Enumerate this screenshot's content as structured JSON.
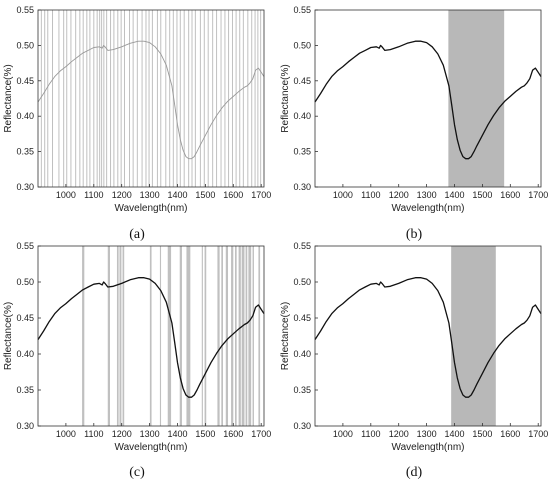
{
  "chart_data": [
    {
      "type": "line",
      "caption": "(a)",
      "xlabel": "Wavelength(nm)",
      "ylabel": "Reflectance(%)",
      "xlim": [
        900,
        1710
      ],
      "ylim": [
        0.3,
        0.55
      ],
      "xticks": [
        "1000",
        "1100",
        "1200",
        "1300",
        "1400",
        "1500",
        "1600",
        "1700"
      ],
      "yticks": [
        "0.30",
        "0.35",
        "0.40",
        "0.45",
        "0.50",
        "0.55"
      ],
      "line_color": "#999999",
      "band_color": "#c0c0c0",
      "selected_wavelengths": [
        912,
        924,
        935,
        952,
        975,
        992,
        1003,
        1018,
        1035,
        1050,
        1062,
        1075,
        1086,
        1100,
        1112,
        1121,
        1128,
        1136,
        1146,
        1160,
        1172,
        1186,
        1198,
        1210,
        1228,
        1241,
        1256,
        1273,
        1287,
        1298,
        1310,
        1328,
        1340,
        1358,
        1372,
        1385,
        1398,
        1410,
        1424,
        1440,
        1452,
        1464,
        1482,
        1496,
        1510,
        1526,
        1540,
        1556,
        1570,
        1583,
        1597,
        1610,
        1623,
        1636,
        1652,
        1666,
        1678,
        1688,
        1698
      ],
      "selected_regions": []
    },
    {
      "type": "line",
      "caption": "(b)",
      "xlabel": "Wavelength(nm)",
      "ylabel": "Reflectance(%)",
      "xlim": [
        900,
        1710
      ],
      "ylim": [
        0.3,
        0.55
      ],
      "xticks": [
        "1000",
        "1100",
        "1200",
        "1300",
        "1400",
        "1500",
        "1600",
        "1700"
      ],
      "yticks": [
        "0.30",
        "0.35",
        "0.40",
        "0.45",
        "0.50",
        "0.55"
      ],
      "line_color": "#111111",
      "band_color": "#b8b8b8",
      "selected_wavelengths": [],
      "selected_regions": [
        [
          1378,
          1578
        ]
      ]
    },
    {
      "type": "line",
      "caption": "(c)",
      "xlabel": "Wavelength(nm)",
      "ylabel": "Reflectance(%)",
      "xlim": [
        900,
        1710
      ],
      "ylim": [
        0.3,
        0.55
      ],
      "xticks": [
        "1000",
        "1100",
        "1200",
        "1300",
        "1400",
        "1500",
        "1600",
        "1700"
      ],
      "yticks": [
        "0.30",
        "0.35",
        "0.40",
        "0.45",
        "0.50",
        "0.55"
      ],
      "line_color": "#111111",
      "band_color": "#c0c0c0",
      "selected_wavelengths": [],
      "selected_regions": [
        [
          1058,
          1066
        ],
        [
          1150,
          1158
        ],
        [
          1183,
          1189
        ],
        [
          1192,
          1199
        ],
        [
          1203,
          1209
        ],
        [
          1301,
          1307
        ],
        [
          1337,
          1341
        ],
        [
          1365,
          1377
        ],
        [
          1408,
          1416
        ],
        [
          1432,
          1446
        ],
        [
          1487,
          1491
        ],
        [
          1497,
          1503
        ],
        [
          1543,
          1551
        ],
        [
          1557,
          1563
        ],
        [
          1573,
          1581
        ],
        [
          1592,
          1600
        ],
        [
          1606,
          1612
        ],
        [
          1619,
          1627
        ],
        [
          1630,
          1640
        ],
        [
          1644,
          1650
        ],
        [
          1654,
          1664
        ],
        [
          1669,
          1674
        ],
        [
          1690,
          1696
        ]
      ]
    },
    {
      "type": "line",
      "caption": "(d)",
      "xlabel": "Wavelength(nm)",
      "ylabel": "Reflectance(%)",
      "xlim": [
        900,
        1710
      ],
      "ylim": [
        0.3,
        0.55
      ],
      "xticks": [
        "1000",
        "1100",
        "1200",
        "1300",
        "1400",
        "1500",
        "1600",
        "1700"
      ],
      "yticks": [
        "0.30",
        "0.35",
        "0.40",
        "0.45",
        "0.50",
        "0.55"
      ],
      "line_color": "#111111",
      "band_color": "#b8b8b8",
      "selected_wavelengths": [],
      "selected_regions": [
        [
          1388,
          1548
        ]
      ]
    }
  ],
  "spectrum": {
    "x": [
      900,
      920,
      940,
      960,
      980,
      1000,
      1020,
      1040,
      1060,
      1080,
      1100,
      1120,
      1130,
      1135,
      1140,
      1150,
      1170,
      1200,
      1230,
      1260,
      1280,
      1300,
      1320,
      1340,
      1360,
      1380,
      1390,
      1400,
      1410,
      1420,
      1430,
      1440,
      1450,
      1460,
      1470,
      1480,
      1500,
      1520,
      1540,
      1560,
      1580,
      1600,
      1620,
      1640,
      1650,
      1660,
      1670,
      1680,
      1690,
      1700,
      1710
    ],
    "y": [
      0.42,
      0.432,
      0.445,
      0.456,
      0.464,
      0.47,
      0.477,
      0.483,
      0.489,
      0.493,
      0.497,
      0.498,
      0.496,
      0.5,
      0.498,
      0.493,
      0.494,
      0.498,
      0.503,
      0.506,
      0.506,
      0.504,
      0.498,
      0.488,
      0.472,
      0.443,
      0.416,
      0.388,
      0.367,
      0.352,
      0.343,
      0.34,
      0.34,
      0.343,
      0.35,
      0.358,
      0.373,
      0.388,
      0.401,
      0.412,
      0.421,
      0.428,
      0.435,
      0.441,
      0.443,
      0.447,
      0.453,
      0.465,
      0.468,
      0.462,
      0.456
    ]
  }
}
